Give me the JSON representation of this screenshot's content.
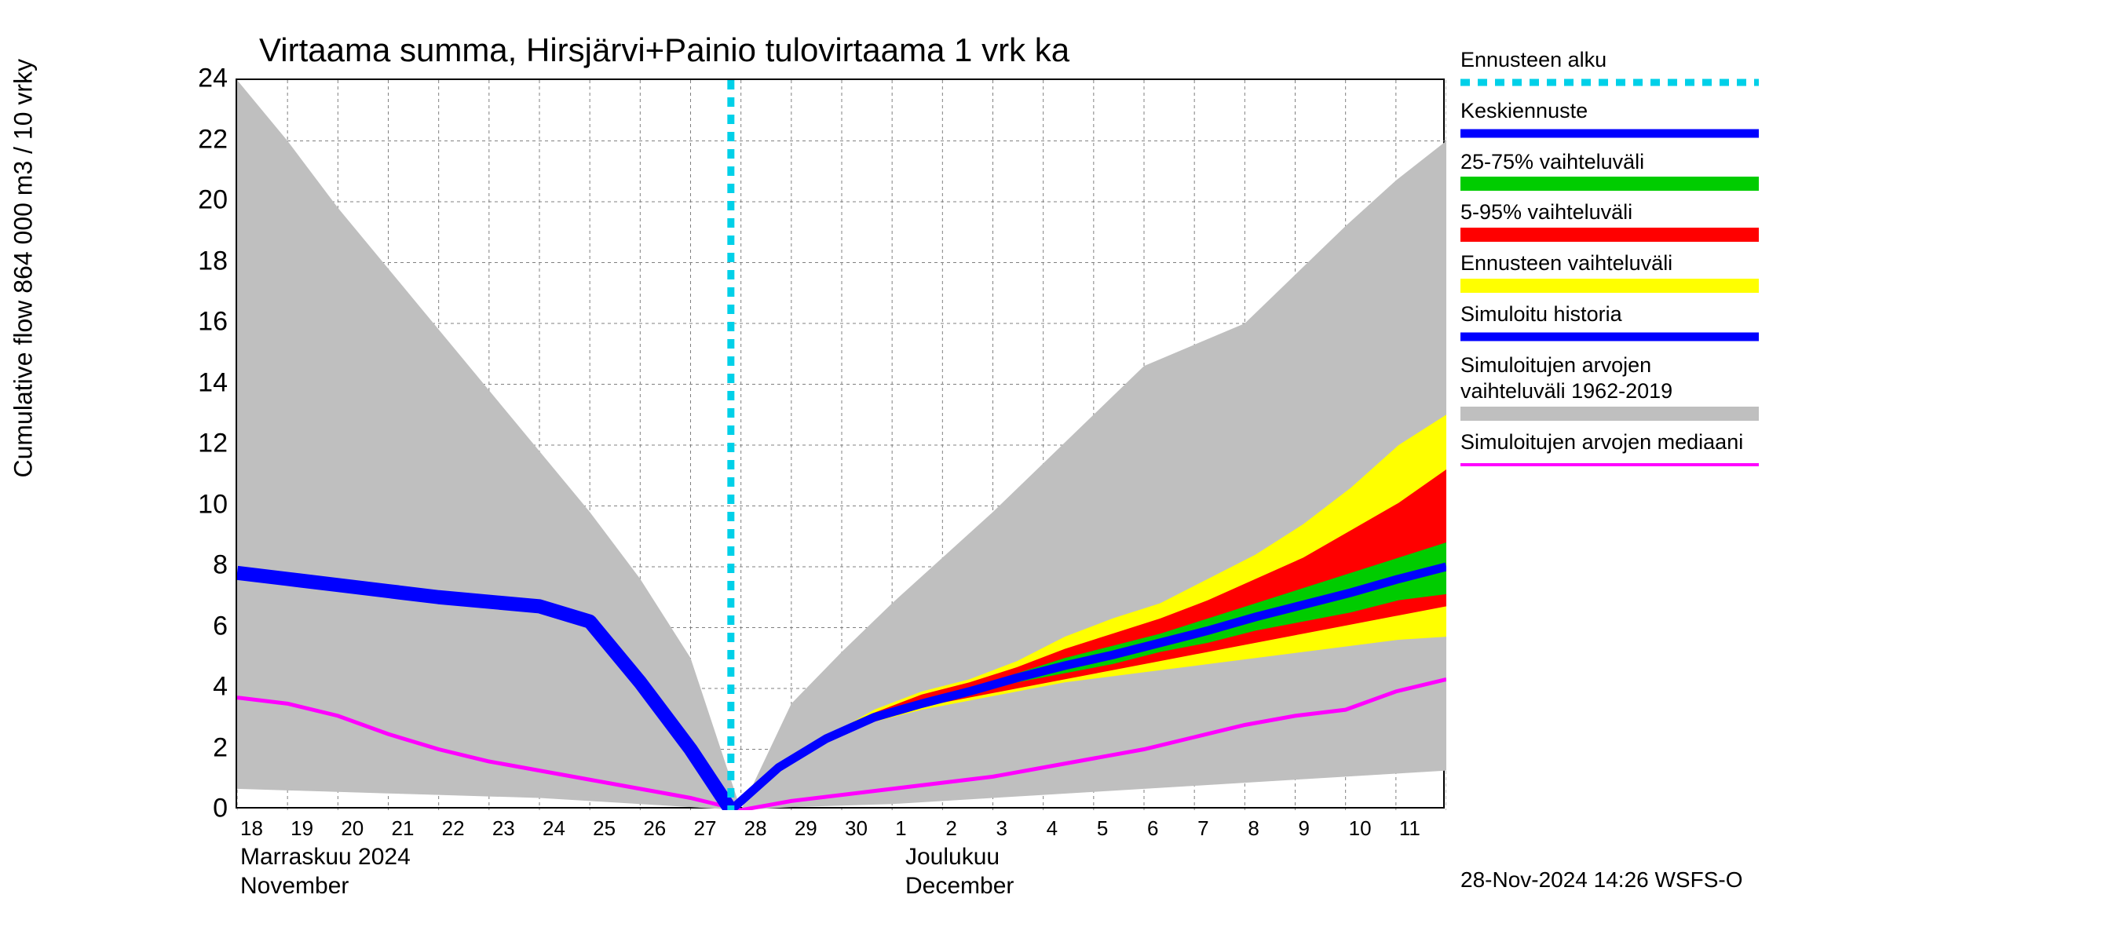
{
  "chart": {
    "title": "Virtaama summa, Hirsjärvi+Painio tulovirtaama 1 vrk ka",
    "y_axis_label": "Cumulative flow      864 000 m3 / 10 vrky",
    "title_fontsize": 42,
    "label_fontsize": 32,
    "tick_fontsize": 34,
    "xtick_fontsize": 26,
    "background_color": "#ffffff",
    "border_color": "#000000",
    "grid_color": "#808080",
    "ylim": [
      0,
      24
    ],
    "yticks": [
      0,
      2,
      4,
      6,
      8,
      10,
      12,
      14,
      16,
      18,
      20,
      22,
      24
    ],
    "x_days": [
      "18",
      "19",
      "20",
      "21",
      "22",
      "23",
      "24",
      "25",
      "26",
      "27",
      "28",
      "29",
      "30",
      "1",
      "2",
      "3",
      "4",
      "5",
      "6",
      "7",
      "8",
      "9",
      "10",
      "11"
    ],
    "x_index_range": [
      0,
      24
    ],
    "month_labels": [
      {
        "fi": "Marraskuu 2024",
        "en": "November",
        "x_index": 0
      },
      {
        "fi": "Joulukuu",
        "en": "December",
        "x_index": 13.2
      }
    ],
    "forecast_start_x": 9.8,
    "footer": "28-Nov-2024 14:26 WSFS-O",
    "series": {
      "history_range_gray": {
        "upper": [
          24.0,
          22.0,
          19.8,
          17.8,
          15.8,
          13.8,
          11.8,
          9.8,
          7.6,
          5.0,
          0.0,
          3.5,
          5.2,
          6.8,
          8.3,
          9.8,
          11.4,
          13.0,
          14.6,
          15.3,
          16.0,
          17.6,
          19.2,
          20.7,
          22.0
        ],
        "lower": [
          0.7,
          0.65,
          0.6,
          0.55,
          0.5,
          0.45,
          0.4,
          0.3,
          0.2,
          0.1,
          0.0,
          0.1,
          0.15,
          0.2,
          0.3,
          0.4,
          0.5,
          0.6,
          0.7,
          0.8,
          0.9,
          1.0,
          1.1,
          1.2,
          1.3
        ],
        "color": "#bfbfbf"
      },
      "forecast_range_yellow": {
        "x_start": 9.8,
        "upper": [
          0.0,
          1.4,
          2.4,
          3.3,
          3.9,
          4.3,
          4.9,
          5.7,
          6.3,
          6.8,
          7.6,
          8.4,
          9.4,
          10.6,
          12.0,
          13.0
        ],
        "lower": [
          0.0,
          1.3,
          2.2,
          2.9,
          3.3,
          3.6,
          3.9,
          4.2,
          4.4,
          4.6,
          4.8,
          5.0,
          5.2,
          5.4,
          5.6,
          5.7
        ],
        "color": "#ffff00"
      },
      "forecast_range_red": {
        "x_start": 9.8,
        "upper": [
          0.0,
          1.4,
          2.4,
          3.2,
          3.8,
          4.2,
          4.7,
          5.3,
          5.8,
          6.3,
          6.9,
          7.6,
          8.3,
          9.2,
          10.1,
          11.2
        ],
        "lower": [
          0.0,
          1.3,
          2.2,
          2.9,
          3.4,
          3.7,
          4.0,
          4.3,
          4.6,
          4.9,
          5.2,
          5.5,
          5.8,
          6.1,
          6.4,
          6.7
        ],
        "color": "#ff0000"
      },
      "forecast_range_green": {
        "x_start": 9.8,
        "upper": [
          0.0,
          1.4,
          2.4,
          3.1,
          3.6,
          4.0,
          4.5,
          5.0,
          5.4,
          5.8,
          6.3,
          6.8,
          7.3,
          7.8,
          8.3,
          8.8
        ],
        "lower": [
          0.0,
          1.3,
          2.3,
          3.0,
          3.4,
          3.8,
          4.2,
          4.5,
          4.8,
          5.2,
          5.5,
          5.9,
          6.2,
          6.5,
          6.9,
          7.1
        ],
        "color": "#00cc00"
      },
      "central_forecast_blue": {
        "x_start": 9.8,
        "values": [
          0.0,
          1.4,
          2.35,
          3.05,
          3.5,
          3.9,
          4.35,
          4.75,
          5.1,
          5.5,
          5.9,
          6.35,
          6.75,
          7.15,
          7.6,
          8.0
        ],
        "color": "#0000ff",
        "line_width": 11
      },
      "simulated_history_blue": {
        "x": [
          0,
          1,
          2,
          3,
          4,
          5,
          6,
          7,
          8,
          9,
          9.8
        ],
        "values": [
          7.8,
          7.6,
          7.4,
          7.2,
          7.0,
          6.85,
          6.7,
          6.2,
          4.2,
          2.0,
          0.0
        ],
        "color": "#0000ff",
        "line_width": 18
      },
      "median_magenta": {
        "values": [
          3.7,
          3.5,
          3.1,
          2.5,
          2.0,
          1.6,
          1.3,
          1.0,
          0.7,
          0.4,
          0.0,
          0.3,
          0.5,
          0.7,
          0.9,
          1.1,
          1.4,
          1.7,
          2.0,
          2.4,
          2.8,
          3.1,
          3.3,
          3.9,
          4.3
        ],
        "color": "#ff00ff",
        "line_width": 5
      },
      "forecast_start_line": {
        "color": "#00d0e8",
        "dash": "12,10",
        "line_width": 9
      }
    },
    "legend": [
      {
        "label": "Ennusteen alku",
        "type": "line",
        "color": "#00d0e8",
        "dash": "12,10",
        "width": 9
      },
      {
        "label": "Keskiennuste",
        "type": "line",
        "color": "#0000ff",
        "width": 11
      },
      {
        "label": "25-75% vaihteluväli",
        "type": "area",
        "color": "#00cc00"
      },
      {
        "label": "5-95% vaihteluväli",
        "type": "area",
        "color": "#ff0000"
      },
      {
        "label": "Ennusteen vaihteluväli",
        "type": "area",
        "color": "#ffff00"
      },
      {
        "label": "Simuloitu historia",
        "type": "line",
        "color": "#0000ff",
        "width": 11
      },
      {
        "label": "Simuloitujen arvojen vaihteluväli 1962-2019",
        "type": "area",
        "color": "#bfbfbf"
      },
      {
        "label": "Simuloitujen arvojen mediaani",
        "type": "line",
        "color": "#ff00ff",
        "width": 4
      }
    ]
  }
}
